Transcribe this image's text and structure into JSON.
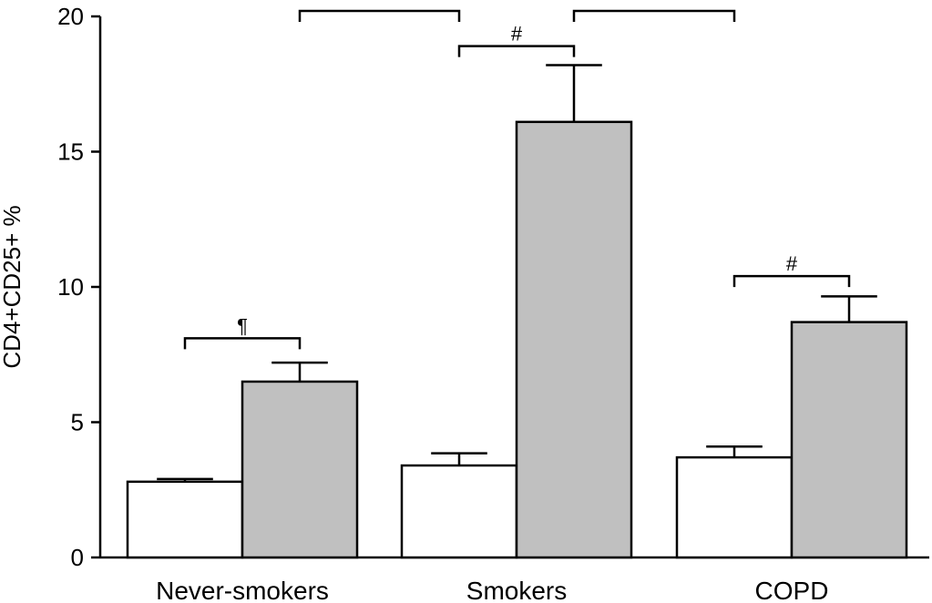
{
  "chart_data": {
    "type": "bar",
    "categories": [
      "Never-smokers",
      "Smokers",
      "COPD"
    ],
    "series": [
      {
        "values": [
          2.8,
          3.4,
          3.7
        ],
        "errors": [
          0.1,
          0.45,
          0.4
        ],
        "color": "#ffffff"
      },
      {
        "values": [
          6.5,
          16.1,
          8.7
        ],
        "errors": [
          0.7,
          2.1,
          0.95
        ],
        "color": "#c0c0c0"
      }
    ],
    "ylabel": "CD4+CD25+ %",
    "xlabel": "",
    "ylim": [
      0,
      20
    ],
    "yticks": [
      0,
      5,
      10,
      15,
      20
    ],
    "grid": false,
    "significance": [
      {
        "label": "¶",
        "from": [
          0,
          0
        ],
        "to": [
          0,
          1
        ],
        "y": 8.1
      },
      {
        "label": "#",
        "from": [
          1,
          0
        ],
        "to": [
          1,
          1
        ],
        "y": 18.9
      },
      {
        "label": "#",
        "from": [
          2,
          0
        ],
        "to": [
          2,
          1
        ],
        "y": 10.4
      },
      {
        "label": "**",
        "from": [
          0,
          1
        ],
        "to": [
          1,
          0
        ],
        "y": 20.2
      },
      {
        "label": "**",
        "from": [
          1,
          1
        ],
        "to": [
          2,
          0
        ],
        "y": 20.2
      }
    ]
  }
}
